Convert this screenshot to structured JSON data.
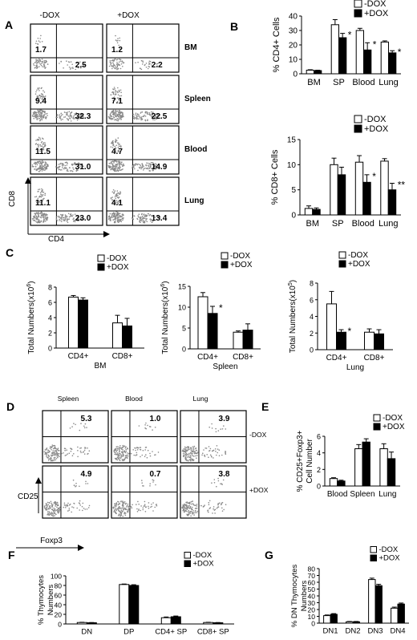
{
  "panelA": {
    "letter": "A",
    "col_labels": [
      "-DOX",
      "+DOX"
    ],
    "row_labels": [
      "BM",
      "Spleen",
      "Blood",
      "Lung"
    ],
    "quad_values": [
      [
        [
          "1.7",
          "2.5"
        ],
        [
          "1.2",
          "2.2"
        ]
      ],
      [
        [
          "9.4",
          "32.3"
        ],
        [
          "7.1",
          "22.5"
        ]
      ],
      [
        [
          "11.5",
          "31.0"
        ],
        [
          "4.7",
          "14.9"
        ]
      ],
      [
        [
          "11.1",
          "23.0"
        ],
        [
          "4.1",
          "13.4"
        ]
      ]
    ],
    "ylabel": "CD8",
    "xlabel": "CD4"
  },
  "panelD": {
    "letter": "D",
    "col_labels": [
      "Spleen",
      "Blood",
      "Lung"
    ],
    "row_labels": [
      "-DOX",
      "+DOX"
    ],
    "quad_values": [
      [
        "5.3",
        "1.0",
        "3.9"
      ],
      [
        "4.9",
        "0.7",
        "3.8"
      ]
    ],
    "ylabel": "CD25",
    "xlabel": "Foxp3"
  },
  "chart_data": [
    {
      "id": "B1",
      "letter": "B",
      "type": "bar",
      "categories": [
        "BM",
        "SP",
        "Blood",
        "Lung"
      ],
      "series": [
        {
          "name": "-DOX",
          "values": [
            2.5,
            34,
            30,
            22
          ],
          "errors": [
            0.3,
            3.5,
            1.5,
            0.8
          ]
        },
        {
          "name": "+DOX",
          "values": [
            2.2,
            25,
            16.5,
            14.5
          ],
          "errors": [
            0.3,
            3,
            5,
            1.5
          ]
        }
      ],
      "ylabel": "% CD4+ Cells",
      "ylim": [
        0,
        40
      ],
      "yticks": [
        0,
        10,
        20,
        30,
        40
      ],
      "stars": [
        "",
        "*",
        "*",
        "*"
      ],
      "legend": "top-right"
    },
    {
      "id": "B2",
      "type": "bar",
      "categories": [
        "BM",
        "SP",
        "Blood",
        "Lung"
      ],
      "series": [
        {
          "name": "-DOX",
          "values": [
            1.3,
            10,
            10.5,
            10.7
          ],
          "errors": [
            0.5,
            1.3,
            1.3,
            0.5
          ]
        },
        {
          "name": "+DOX",
          "values": [
            1.1,
            8,
            6.5,
            5
          ],
          "errors": [
            0.3,
            1.5,
            1.5,
            1.3
          ]
        }
      ],
      "ylabel": "% CD8+ Cells",
      "ylim": [
        0,
        15
      ],
      "yticks": [
        0,
        5,
        10,
        15
      ],
      "stars": [
        "",
        "",
        "*",
        "**"
      ],
      "legend": "top-right"
    },
    {
      "id": "C1",
      "letter": "C",
      "type": "bar",
      "categories": [
        "CD4+",
        "CD8+"
      ],
      "xlabel": "BM",
      "series": [
        {
          "name": "-DOX",
          "values": [
            6.7,
            3.3
          ],
          "errors": [
            0.2,
            1.0
          ]
        },
        {
          "name": "+DOX",
          "values": [
            6.3,
            2.9
          ],
          "errors": [
            0.3,
            1.0
          ]
        }
      ],
      "ylabel": "Total Numbers(x10",
      "ylabel_sup": "6",
      "ylabel_end": ")",
      "ylim": [
        0,
        8
      ],
      "yticks": [
        0,
        2,
        4,
        6,
        8
      ],
      "stars": [
        "",
        ""
      ],
      "legend": "top-right"
    },
    {
      "id": "C2",
      "type": "bar",
      "categories": [
        "CD4+",
        "CD8+"
      ],
      "xlabel": "Spleen",
      "series": [
        {
          "name": "-DOX",
          "values": [
            12.5,
            4
          ],
          "errors": [
            1.0,
            0.3
          ]
        },
        {
          "name": "+DOX",
          "values": [
            8.5,
            4.5
          ],
          "errors": [
            1.7,
            1.5
          ]
        }
      ],
      "ylabel": "Total Numbers(x10",
      "ylabel_sup": "6",
      "ylabel_end": ")",
      "ylim": [
        0,
        15
      ],
      "yticks": [
        0,
        5,
        10,
        15
      ],
      "stars": [
        "*",
        ""
      ],
      "legend": "top-right"
    },
    {
      "id": "C3",
      "type": "bar",
      "categories": [
        "CD4+",
        "CD8+"
      ],
      "xlabel": "Lung",
      "series": [
        {
          "name": "-DOX",
          "values": [
            5.5,
            2.1
          ],
          "errors": [
            1.5,
            0.4
          ]
        },
        {
          "name": "+DOX",
          "values": [
            2.1,
            1.9
          ],
          "errors": [
            0.3,
            0.5
          ]
        }
      ],
      "ylabel": "Total Numbers(x10",
      "ylabel_sup": "5",
      "ylabel_end": ")",
      "ylim": [
        0,
        8
      ],
      "yticks": [
        0,
        2,
        4,
        6,
        8
      ],
      "stars": [
        "*",
        ""
      ],
      "legend": "top-right"
    },
    {
      "id": "E",
      "letter": "E",
      "type": "bar",
      "categories": [
        "Blood",
        "Spleen",
        "Lung"
      ],
      "series": [
        {
          "name": "-DOX",
          "values": [
            0.9,
            4.5,
            4.5
          ],
          "errors": [
            0.1,
            0.5,
            0.6
          ]
        },
        {
          "name": "+DOX",
          "values": [
            0.6,
            5.3,
            3.3
          ],
          "errors": [
            0.1,
            0.4,
            0.8
          ]
        }
      ],
      "ylabel": "% CD25+Foxp3+",
      "ylabel2": "Cell Number",
      "ylim": [
        0,
        6
      ],
      "yticks": [
        0,
        2,
        4,
        6
      ],
      "stars": [
        "",
        "",
        ""
      ],
      "legend": "top-right"
    },
    {
      "id": "F",
      "letter": "F",
      "type": "bar",
      "categories": [
        "DN",
        "DP",
        "CD4+ SP",
        "CD8+ SP"
      ],
      "series": [
        {
          "name": "-DOX",
          "values": [
            3,
            82,
            13,
            3
          ],
          "errors": [
            0.5,
            1,
            1.5,
            0.5
          ]
        },
        {
          "name": "+DOX",
          "values": [
            2.5,
            80,
            15,
            2.5
          ],
          "errors": [
            0.5,
            1.5,
            1.5,
            0.5
          ]
        }
      ],
      "ylabel": "% Thymocytes",
      "ylabel2": "Numbers",
      "ylim": [
        0,
        100
      ],
      "yticks": [
        0,
        20,
        40,
        60,
        80,
        100
      ],
      "stars": [
        "",
        "",
        "",
        ""
      ],
      "legend": "top-right"
    },
    {
      "id": "G",
      "letter": "G",
      "type": "bar",
      "categories": [
        "DN1",
        "DN2",
        "DN3",
        "DN4"
      ],
      "series": [
        {
          "name": "-DOX",
          "values": [
            11,
            2,
            64,
            22
          ],
          "errors": [
            1,
            0.5,
            2,
            1.5
          ]
        },
        {
          "name": "+DOX",
          "values": [
            13,
            2,
            55,
            28
          ],
          "errors": [
            1,
            0.5,
            2,
            1.5
          ]
        }
      ],
      "ylabel": "% DN Thymocytes",
      "ylabel2": "Numbers",
      "ylim": [
        0,
        80
      ],
      "yticks": [
        0,
        10,
        20,
        30,
        40,
        50,
        60,
        70,
        80
      ],
      "stars": [
        "",
        "",
        "",
        ""
      ],
      "legend": "top-right"
    }
  ]
}
